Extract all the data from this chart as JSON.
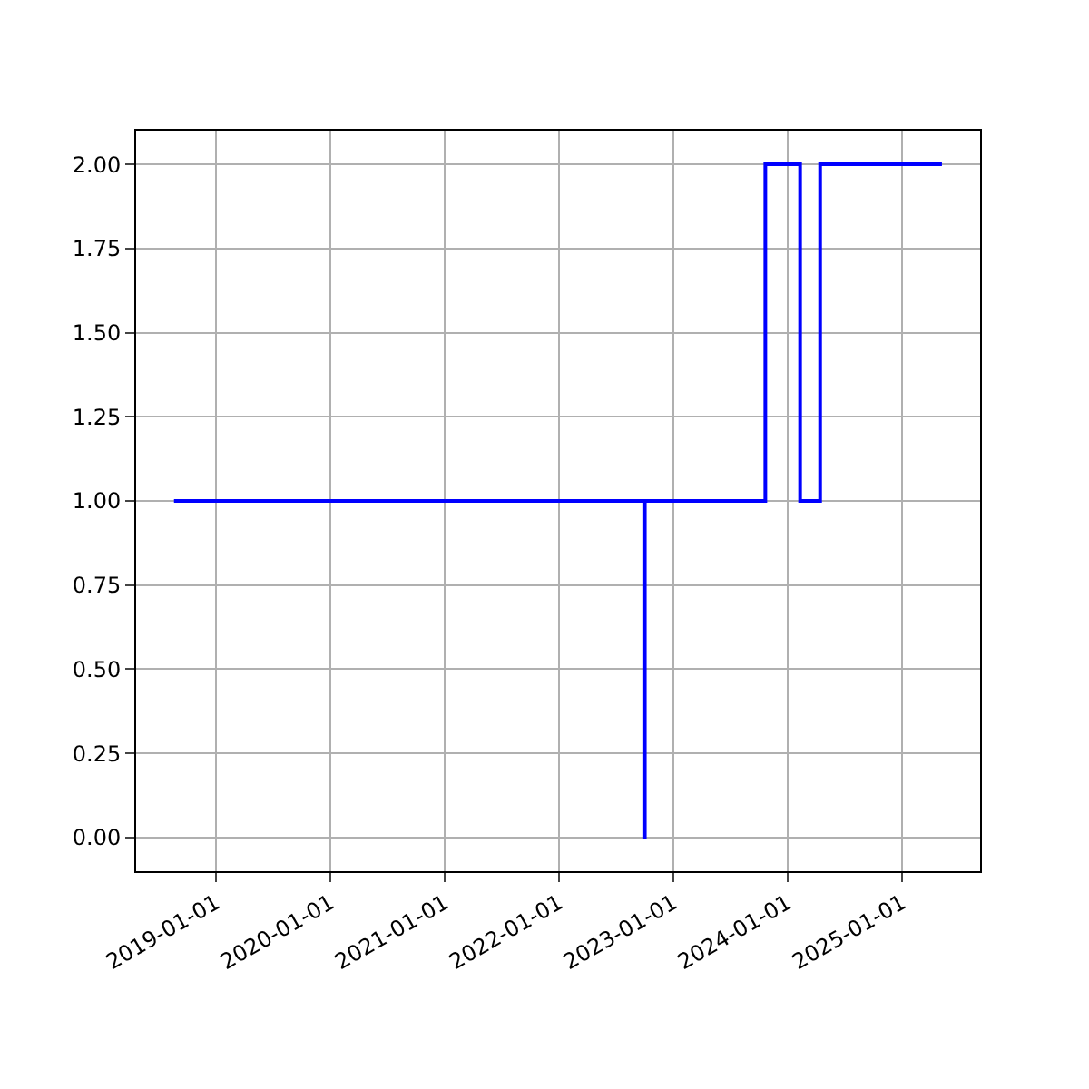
{
  "chart_data": {
    "type": "step",
    "x": [
      "2018-08-20",
      "2022-09-30",
      "2022-10-02",
      "2023-10-22",
      "2024-02-10",
      "2024-04-14",
      "2025-05-08"
    ],
    "series": [
      {
        "color": "#0000ff",
        "values": [
          1,
          0,
          1,
          2,
          1,
          2,
          2
        ]
      }
    ],
    "xlim": [
      "2018-04-21",
      "2025-09-07"
    ],
    "xticks": [
      "2019-01-01",
      "2020-01-01",
      "2021-01-01",
      "2022-01-01",
      "2023-01-01",
      "2024-01-01",
      "2025-01-01"
    ],
    "ylim": [
      -0.1,
      2.1
    ],
    "yticks": [
      {
        "value": 0,
        "label": "0.00"
      },
      {
        "value": 0.25,
        "label": "0.25"
      },
      {
        "value": 0.5,
        "label": "0.50"
      },
      {
        "value": 0.75,
        "label": "0.75"
      },
      {
        "value": 1,
        "label": "1.00"
      },
      {
        "value": 1.25,
        "label": "1.25"
      },
      {
        "value": 1.5,
        "label": "1.50"
      },
      {
        "value": 1.75,
        "label": "1.75"
      },
      {
        "value": 2,
        "label": "2.00"
      }
    ],
    "grid": true
  }
}
